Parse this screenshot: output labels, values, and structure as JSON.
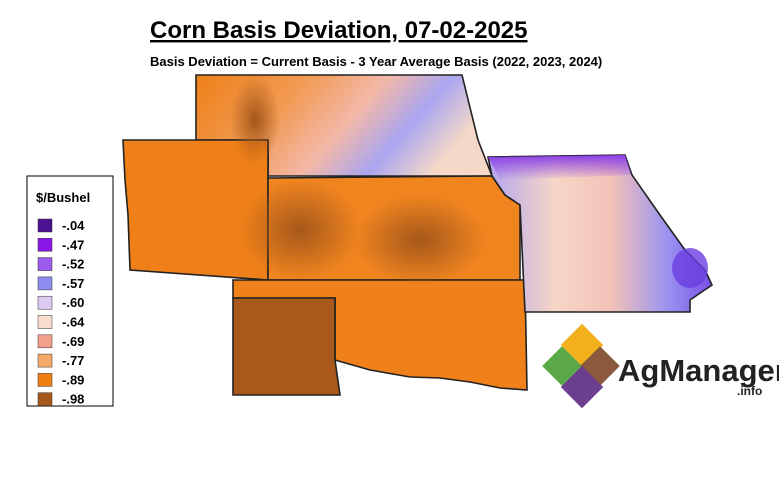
{
  "title": "Corn Basis Deviation, 07-02-2025",
  "subtitle": "Basis Deviation = Current Basis - 3 Year Average Basis (2022, 2023, 2024)",
  "legend": {
    "title": "$/Bushel",
    "items": [
      {
        "label": "-.04",
        "color": "#4b1190"
      },
      {
        "label": "-.47",
        "color": "#8a17e8"
      },
      {
        "label": "-.52",
        "color": "#9d5bef"
      },
      {
        "label": "-.57",
        "color": "#8d8cf0"
      },
      {
        "label": "-.60",
        "color": "#dccaf2"
      },
      {
        "label": "-.64",
        "color": "#f8dccd"
      },
      {
        "label": "-.69",
        "color": "#f3a08a"
      },
      {
        "label": "-.77",
        "color": "#f5aa6a"
      },
      {
        "label": "-.89",
        "color": "#f07f12"
      },
      {
        "label": "-.98",
        "color": "#a5581a"
      }
    ]
  },
  "logo": {
    "name": "AgManager",
    "suffix": ".info"
  }
}
